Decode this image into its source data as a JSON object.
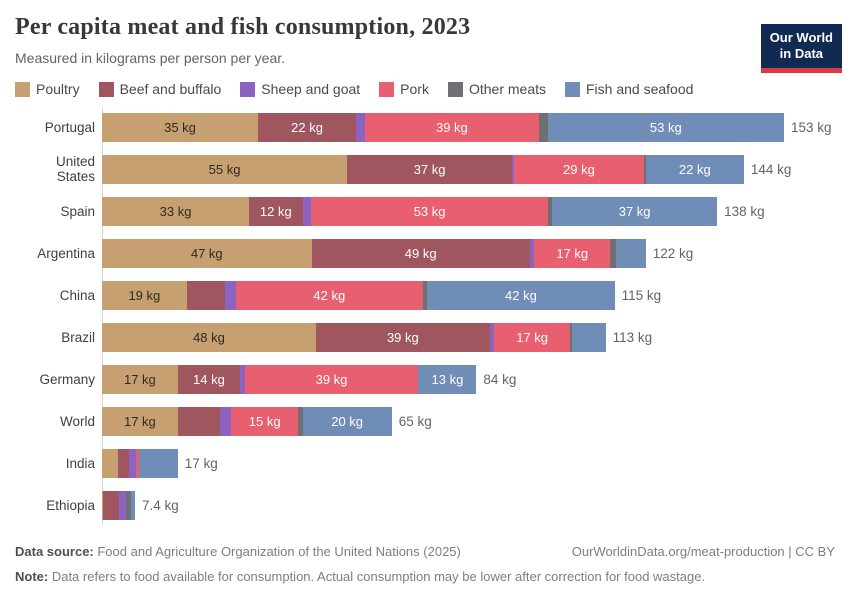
{
  "header": {
    "title": "Per capita meat and fish consumption, 2023",
    "subtitle": "Measured in kilograms per person per year.",
    "logo": {
      "line1": "Our World",
      "line2": "in Data"
    }
  },
  "legend": [
    {
      "label": "Poultry",
      "color": "#C6A070"
    },
    {
      "label": "Beef and buffalo",
      "color": "#A0565F"
    },
    {
      "label": "Sheep and goat",
      "color": "#8C63C0"
    },
    {
      "label": "Pork",
      "color": "#E85F70"
    },
    {
      "label": "Other meats",
      "color": "#6E7074"
    },
    {
      "label": "Fish and seafood",
      "color": "#708DB8"
    }
  ],
  "chart_data": {
    "type": "bar",
    "orientation": "horizontal",
    "stacked": true,
    "unit": "kg",
    "xlim": [
      0,
      153
    ],
    "grid": false,
    "label_min_value": 12,
    "series_names": [
      "Poultry",
      "Beef and buffalo",
      "Sheep and goat",
      "Pork",
      "Other meats",
      "Fish and seafood"
    ],
    "series_colors": [
      "#C6A070",
      "#A0565F",
      "#8C63C0",
      "#E85F70",
      "#6E7074",
      "#708DB8"
    ],
    "rows": [
      {
        "country": "Portugal",
        "values": [
          35,
          22,
          2,
          39,
          2,
          53
        ],
        "total": 153,
        "total_label": "153 kg"
      },
      {
        "country": "United States",
        "values": [
          55,
          37,
          0.5,
          29,
          0.5,
          22
        ],
        "total": 144,
        "total_label": "144 kg"
      },
      {
        "country": "Spain",
        "values": [
          33,
          12,
          2,
          53,
          1,
          37
        ],
        "total": 138,
        "total_label": "138 kg"
      },
      {
        "country": "Argentina",
        "values": [
          47,
          49,
          1,
          17,
          1.3,
          6.7
        ],
        "total": 122,
        "total_label": "122 kg"
      },
      {
        "country": "China",
        "values": [
          19,
          8.5,
          2.5,
          42,
          1,
          42
        ],
        "total": 115,
        "total_label": "115 kg"
      },
      {
        "country": "Brazil",
        "values": [
          48,
          39,
          1,
          17,
          0.5,
          7.5
        ],
        "total": 113,
        "total_label": "113 kg"
      },
      {
        "country": "Germany",
        "values": [
          17,
          14,
          1,
          39,
          0,
          13
        ],
        "total": 84,
        "total_label": "84 kg"
      },
      {
        "country": "World",
        "values": [
          17,
          9.5,
          2.5,
          15,
          1,
          20
        ],
        "total": 65,
        "total_label": "65 kg"
      },
      {
        "country": "India",
        "values": [
          3.6,
          2.4,
          1.6,
          0.6,
          0.2,
          8.6
        ],
        "total": 17,
        "total_label": "17 kg"
      },
      {
        "country": "Ethiopia",
        "values": [
          0.3,
          3.5,
          1.6,
          0.1,
          1.1,
          0.8
        ],
        "total": 7.4,
        "total_label": "7.4 kg"
      }
    ]
  },
  "footer": {
    "source_label": "Data source:",
    "source_text": " Food and Agriculture Organization of the United Nations (2025)",
    "link_text": "OurWorldinData.org/meat-production | CC BY",
    "note_label": "Note:",
    "note_text": " Data refers to food available for consumption. Actual consumption may be lower after correction for food wastage."
  }
}
